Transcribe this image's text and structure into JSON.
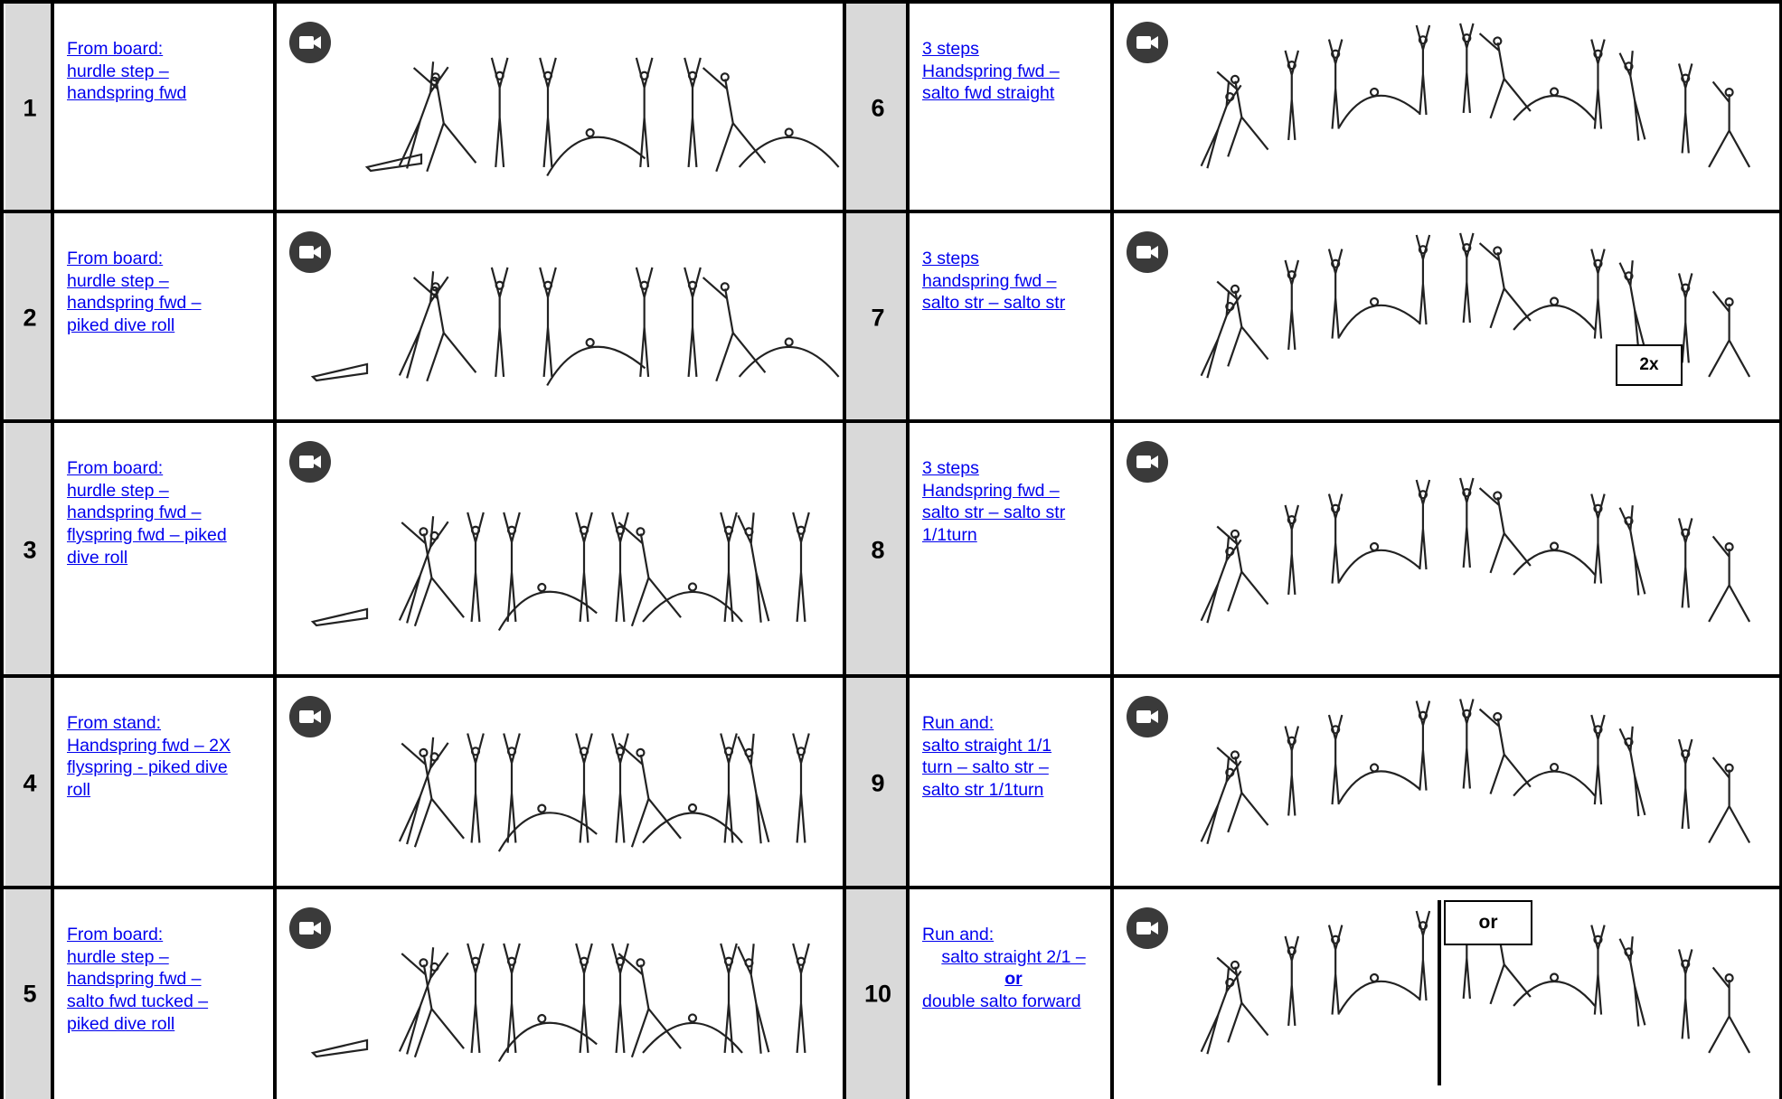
{
  "rows": [
    {
      "num": "1",
      "desc": [
        "From board:",
        "hurdle step –",
        "handspring  fwd"
      ]
    },
    {
      "num": "2",
      "desc": [
        "From board:",
        "hurdle step –",
        "handspring  fwd –",
        "piked dive roll"
      ]
    },
    {
      "num": "3",
      "desc": [
        "From board:",
        "hurdle step –",
        "handspring  fwd –",
        "flyspring fwd –  piked",
        "dive roll"
      ]
    },
    {
      "num": "4",
      "desc": [
        "From stand:",
        "Handspring  fwd – 2X",
        "flyspring - piked dive",
        "roll"
      ]
    },
    {
      "num": "5",
      "desc": [
        "From board:",
        "hurdle step –",
        "handspring  fwd –",
        "salto fwd tucked –",
        "piked dive roll"
      ]
    },
    {
      "num": "6",
      "desc": [
        "3 steps",
        "Handspring  fwd –",
        "salto fwd straight"
      ]
    },
    {
      "num": "7",
      "desc": [
        "3 steps",
        "handspring  fwd  –",
        "salto str – salto str"
      ]
    },
    {
      "num": "8",
      "desc": [
        "3 steps",
        "Handspring  fwd –",
        "salto str – salto str",
        "1/1turn"
      ]
    },
    {
      "num": "9",
      "desc": [
        "Run and:",
        "salto straight 1/1",
        "turn  – salto str –",
        "salto str 1/1turn"
      ]
    },
    {
      "num": "10",
      "desc": [
        "Run and:",
        "salto straight 2/1 –",
        "or",
        "double salto forward"
      ]
    }
  ],
  "tags": {
    "repeat": "2x",
    "alternative": "or"
  },
  "icons": {
    "video": "video-camera-icon"
  },
  "colors": {
    "link": "#0000ee",
    "number_bg": "#d9d9d9",
    "border": "#000000",
    "icon_bg": "#3a3a3a"
  }
}
